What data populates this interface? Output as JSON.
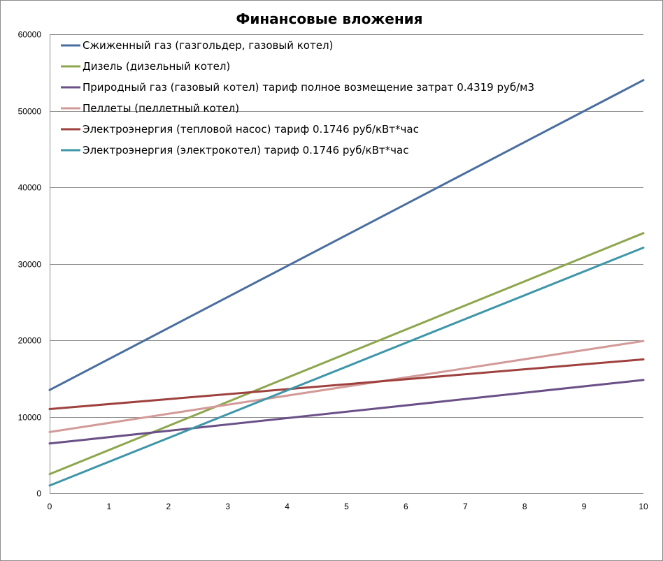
{
  "chart_data": {
    "type": "line",
    "title": "Финансовые вложения",
    "xlabel": "",
    "ylabel": "",
    "xlim": [
      0,
      10
    ],
    "ylim": [
      0,
      60000
    ],
    "x_ticks": [
      0,
      1,
      2,
      3,
      4,
      5,
      6,
      7,
      8,
      9,
      10
    ],
    "y_ticks": [
      0,
      10000,
      20000,
      30000,
      40000,
      50000,
      60000
    ],
    "grid": true,
    "legend_position": "top-left",
    "series": [
      {
        "name": "Сжиженный газ (газгольдер, газовый котел)",
        "color": "#4a6e9f",
        "x": [
          0,
          10
        ],
        "y": [
          13500,
          54000
        ]
      },
      {
        "name": "Дизель (дизельный котел)",
        "color": "#8ea64e",
        "x": [
          0,
          10
        ],
        "y": [
          2500,
          34000
        ]
      },
      {
        "name": "Природный газ (газовый котел) тариф полное возмещение затрат 0.4319 руб/м3",
        "color": "#6a5087",
        "x": [
          0,
          10
        ],
        "y": [
          6500,
          14800
        ]
      },
      {
        "name": "Пеллеты (пеллетный котел)",
        "color": "#d29a98",
        "x": [
          0,
          10
        ],
        "y": [
          8000,
          19900
        ]
      },
      {
        "name": "Электроэнергия (тепловой насос) тариф 0.1746 руб/кВт*час",
        "color": "#9e413e",
        "x": [
          0,
          10
        ],
        "y": [
          11000,
          17500
        ]
      },
      {
        "name": "Электроэнергия (электрокотел) тариф 0.1746 руб/кВт*час",
        "color": "#3e96a8",
        "x": [
          0,
          10
        ],
        "y": [
          1000,
          32100
        ]
      }
    ]
  }
}
